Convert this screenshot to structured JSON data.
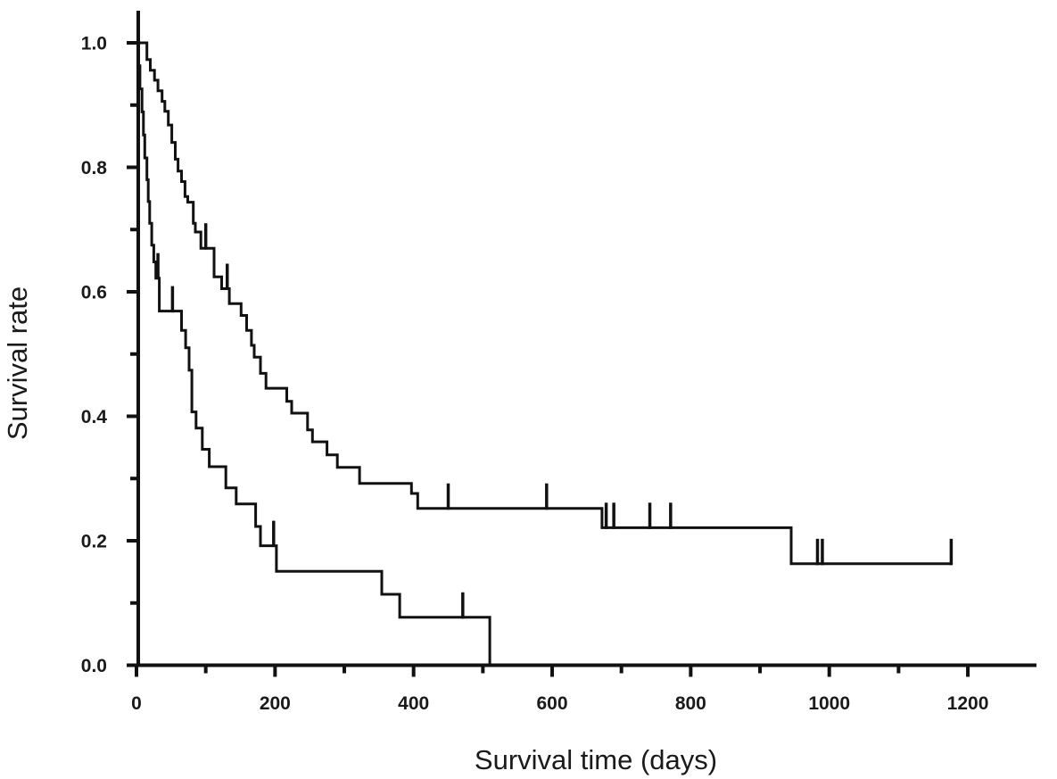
{
  "figure": {
    "background_color": "#ffffff",
    "line_color": "#111111"
  },
  "chart_data": {
    "type": "line",
    "subtype": "kaplan-meier-step",
    "title": "",
    "xlabel": "Survival time (days)",
    "ylabel": "Survival rate",
    "xlim": [
      0,
      1300
    ],
    "ylim": [
      0.0,
      1.0
    ],
    "x_ticks_major": [
      0,
      200,
      400,
      600,
      800,
      1000,
      1200
    ],
    "x_ticks_minor": [
      100,
      300,
      500,
      700,
      900,
      1100
    ],
    "y_ticks_major": [
      1.0,
      0.8,
      0.6,
      0.4,
      0.2,
      0.0
    ],
    "y_ticks_minor": [
      0.9,
      0.7,
      0.5,
      0.3,
      0.1
    ],
    "grid": false,
    "legend": "none",
    "series": [
      {
        "name": "upper-curve-slow-decline",
        "color": "#111111",
        "start": [
          0,
          1.0
        ],
        "end_day": 1176,
        "steps": [
          [
            15,
            0.973
          ],
          [
            20,
            0.956
          ],
          [
            26,
            0.94
          ],
          [
            31,
            0.923
          ],
          [
            37,
            0.906
          ],
          [
            41,
            0.89
          ],
          [
            46,
            0.868
          ],
          [
            51,
            0.84
          ],
          [
            56,
            0.813
          ],
          [
            60,
            0.794
          ],
          [
            65,
            0.777
          ],
          [
            70,
            0.753
          ],
          [
            74,
            0.744
          ],
          [
            82,
            0.71
          ],
          [
            85,
            0.696
          ],
          [
            93,
            0.67
          ],
          [
            112,
            0.624
          ],
          [
            123,
            0.605
          ],
          [
            134,
            0.581
          ],
          [
            151,
            0.562
          ],
          [
            159,
            0.538
          ],
          [
            166,
            0.514
          ],
          [
            170,
            0.495
          ],
          [
            179,
            0.469
          ],
          [
            187,
            0.445
          ],
          [
            217,
            0.424
          ],
          [
            224,
            0.405
          ],
          [
            247,
            0.378
          ],
          [
            254,
            0.359
          ],
          [
            275,
            0.338
          ],
          [
            290,
            0.318
          ],
          [
            322,
            0.292
          ],
          [
            397,
            0.276
          ],
          [
            406,
            0.252
          ],
          [
            672,
            0.221
          ],
          [
            945,
            0.163
          ]
        ],
        "censors": [
          [
            100,
            0.67
          ],
          [
            131,
            0.605
          ],
          [
            450,
            0.252
          ],
          [
            592,
            0.252
          ],
          [
            678,
            0.221
          ],
          [
            689,
            0.221
          ],
          [
            741,
            0.221
          ],
          [
            771,
            0.221
          ],
          [
            983,
            0.163
          ],
          [
            990,
            0.163
          ],
          [
            1176,
            0.163
          ]
        ]
      },
      {
        "name": "lower-curve-fast-decline",
        "color": "#111111",
        "start": [
          0,
          1.0
        ],
        "end_day": 510,
        "steps": [
          [
            3,
            0.963
          ],
          [
            5,
            0.926
          ],
          [
            8,
            0.889
          ],
          [
            10,
            0.852
          ],
          [
            12,
            0.815
          ],
          [
            15,
            0.78
          ],
          [
            17,
            0.745
          ],
          [
            19,
            0.71
          ],
          [
            22,
            0.675
          ],
          [
            25,
            0.648
          ],
          [
            28,
            0.622
          ],
          [
            33,
            0.569
          ],
          [
            65,
            0.538
          ],
          [
            71,
            0.51
          ],
          [
            76,
            0.474
          ],
          [
            80,
            0.407
          ],
          [
            86,
            0.381
          ],
          [
            95,
            0.347
          ],
          [
            105,
            0.319
          ],
          [
            129,
            0.285
          ],
          [
            144,
            0.259
          ],
          [
            172,
            0.223
          ],
          [
            179,
            0.192
          ],
          [
            202,
            0.151
          ],
          [
            354,
            0.114
          ],
          [
            380,
            0.077
          ],
          [
            510,
            0.0
          ]
        ],
        "censors": [
          [
            31,
            0.622
          ],
          [
            52,
            0.569
          ],
          [
            198,
            0.192
          ],
          [
            471,
            0.077
          ]
        ]
      }
    ]
  }
}
